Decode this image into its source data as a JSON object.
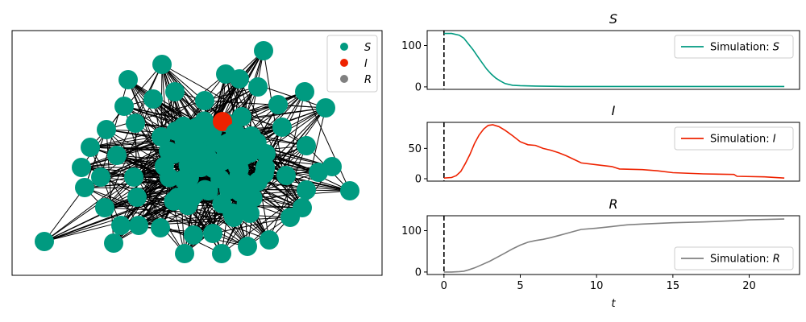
{
  "colors": {
    "S": "#009a80",
    "I": "#ee2200",
    "R": "#808080"
  },
  "network": {
    "legend": [
      {
        "key": "S",
        "label": "S"
      },
      {
        "key": "I",
        "label": "I"
      },
      {
        "key": "R",
        "label": "R"
      }
    ]
  },
  "chart_data": [
    {
      "type": "line",
      "title": "S",
      "legend_prefix": "Simulation: ",
      "legend_series": "S",
      "legend_position": "upper-right",
      "color_key": "S",
      "xlim": [
        -1.1,
        23.3
      ],
      "ylim": [
        -6,
        136
      ],
      "yticks": [
        0,
        100
      ],
      "vline_x": 0,
      "x": [
        0,
        0.5,
        1,
        1.3,
        1.6,
        1.9,
        2.2,
        2.5,
        2.8,
        3.1,
        3.4,
        3.7,
        4,
        4.5,
        5,
        6,
        8,
        10,
        15,
        20,
        22.3
      ],
      "values": [
        129,
        129,
        125,
        118,
        104,
        90,
        74,
        58,
        43,
        31,
        21,
        14,
        8,
        4,
        3,
        2,
        1,
        1,
        1,
        1,
        1
      ]
    },
    {
      "type": "line",
      "title": "I",
      "legend_prefix": "Simulation: ",
      "legend_series": "I",
      "legend_position": "upper-right",
      "color_key": "I",
      "xlim": [
        -1.1,
        23.3
      ],
      "ylim": [
        -4,
        93
      ],
      "yticks": [
        0,
        50
      ],
      "vline_x": 0,
      "x": [
        0,
        0.5,
        0.8,
        1.1,
        1.4,
        1.7,
        2,
        2.3,
        2.6,
        2.9,
        3.2,
        3.6,
        4,
        4.5,
        5,
        5.5,
        6,
        6.5,
        7,
        7.5,
        8,
        8.5,
        9,
        10,
        11,
        11.5,
        13,
        14,
        15,
        17,
        19,
        19.2,
        21,
        22.3
      ],
      "values": [
        1,
        2,
        5,
        12,
        25,
        40,
        58,
        72,
        82,
        88,
        89,
        86,
        80,
        71,
        61,
        56,
        55,
        50,
        47,
        43,
        38,
        32,
        26,
        23,
        20,
        16,
        15,
        13,
        10,
        8,
        7,
        4,
        3,
        1
      ]
    },
    {
      "type": "line",
      "title": "R",
      "legend_prefix": "Simulation: ",
      "legend_series": "R",
      "legend_position": "lower-right",
      "color_key": "R",
      "xlim": [
        -1.1,
        23.3
      ],
      "ylim": [
        -6,
        136
      ],
      "yticks": [
        0,
        100
      ],
      "vline_x": 0,
      "xlabel": "t",
      "xticks": [
        0,
        5,
        10,
        15,
        20
      ],
      "x": [
        0,
        0.5,
        1,
        1.3,
        1.6,
        2,
        2.5,
        3,
        3.5,
        4,
        4.5,
        5,
        5.5,
        6,
        6.5,
        7,
        7.5,
        8,
        8.5,
        9,
        10,
        11,
        12,
        13,
        15,
        17,
        19,
        20,
        22.3
      ],
      "values": [
        0,
        0,
        1,
        2,
        5,
        10,
        18,
        26,
        36,
        46,
        56,
        65,
        72,
        76,
        79,
        83,
        88,
        93,
        98,
        103,
        106,
        110,
        114,
        116,
        119,
        121,
        124,
        126,
        128
      ]
    }
  ]
}
